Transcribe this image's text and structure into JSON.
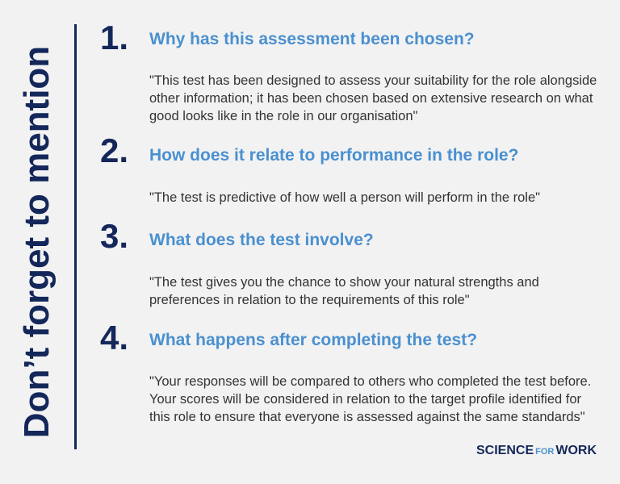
{
  "sidebar": {
    "title": "Don’t forget to mention"
  },
  "items": [
    {
      "number": "1.",
      "question": "Why has this assessment been chosen?",
      "answer": "\"This test has been designed to assess your suitability for the role alongside other information; it has been chosen based on extensive research on what good looks like in the role in our organisation\""
    },
    {
      "number": "2.",
      "question": "How does it relate to performance in the role?",
      "answer": "\"The test is predictive of how well a person will perform in the role\""
    },
    {
      "number": "3.",
      "question": "What does the test involve?",
      "answer": "\"The test gives you the chance to show your natural strengths and preferences in relation to the requirements of this role\""
    },
    {
      "number": "4.",
      "question": "What happens after completing the test?",
      "answer": "\"Your responses will be compared to others who completed the test before. Your scores will be considered in relation to the target profile identified for this role to ensure that everyone is assessed against the same standards\""
    }
  ],
  "logo": {
    "science": "SCIENCE",
    "for": "FOR",
    "work": "WORK"
  }
}
